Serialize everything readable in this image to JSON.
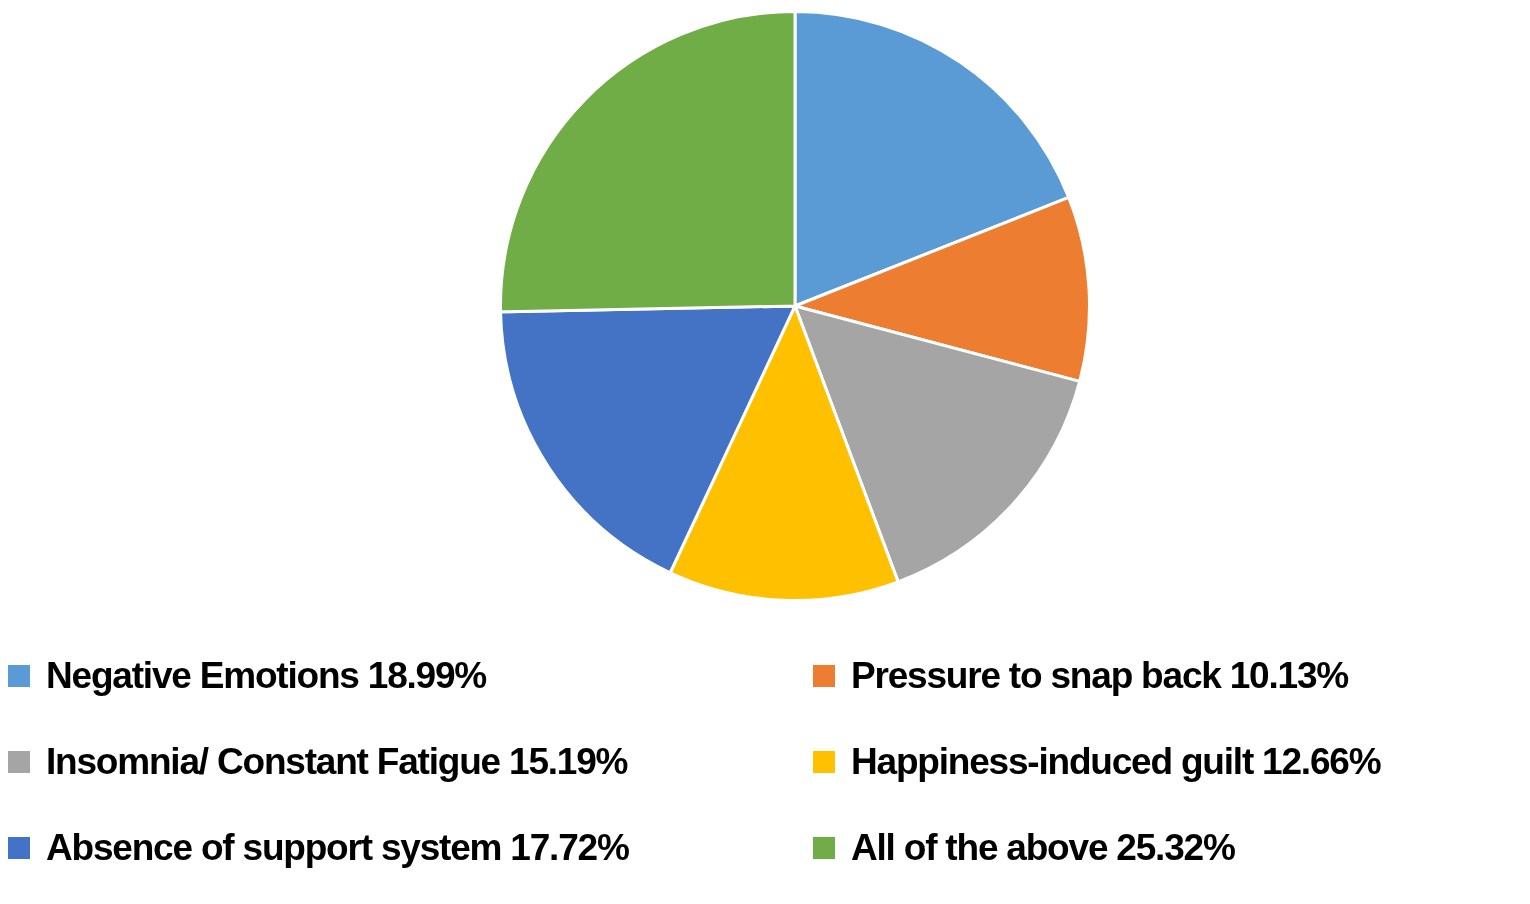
{
  "chart_data": {
    "type": "pie",
    "categories": [
      "Negative Emotions 18.99%",
      "Pressure to snap back 10.13%",
      "Insomnia/ Constant Fatigue 15.19%",
      "Happiness-induced guilt 12.66%",
      "Absence of support system 17.72%",
      "All of the above 25.32%"
    ],
    "values": [
      18.99,
      10.13,
      15.19,
      12.66,
      17.72,
      25.32
    ],
    "colors": [
      "#5b9bd5",
      "#ed7d31",
      "#a5a5a5",
      "#ffc000",
      "#4472c4",
      "#70ad47"
    ],
    "legend": "bottom"
  }
}
